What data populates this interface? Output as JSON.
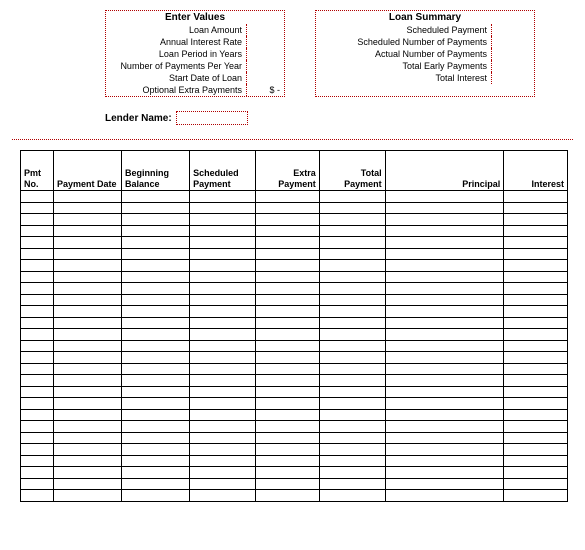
{
  "enter_values": {
    "title": "Enter Values",
    "rows": [
      {
        "label": "Loan Amount",
        "value": ""
      },
      {
        "label": "Annual Interest Rate",
        "value": ""
      },
      {
        "label": "Loan Period in Years",
        "value": ""
      },
      {
        "label": "Number of Payments Per Year",
        "value": ""
      },
      {
        "label": "Start Date of Loan",
        "value": ""
      },
      {
        "label": "Optional Extra Payments",
        "value": "$        -"
      }
    ]
  },
  "loan_summary": {
    "title": "Loan Summary",
    "rows": [
      {
        "label": "Scheduled Payment",
        "value": ""
      },
      {
        "label": "Scheduled Number of Payments",
        "value": ""
      },
      {
        "label": "Actual Number of Payments",
        "value": ""
      },
      {
        "label": "Total Early Payments",
        "value": ""
      },
      {
        "label": "Total Interest",
        "value": ""
      }
    ]
  },
  "lender": {
    "label": "Lender Name:",
    "value": ""
  },
  "schedule": {
    "columns": [
      {
        "label": "Pmt No.",
        "cls": "c-pmtno",
        "align": "l"
      },
      {
        "label": "Payment Date",
        "cls": "c-date",
        "align": "l"
      },
      {
        "label": "Beginning Balance",
        "cls": "c-beg",
        "align": "l"
      },
      {
        "label": "Scheduled Payment",
        "cls": "c-sched",
        "align": "l"
      },
      {
        "label": "Extra Payment",
        "cls": "c-extra",
        "align": "r"
      },
      {
        "label": "Total Payment",
        "cls": "c-total",
        "align": "r"
      },
      {
        "label": "Principal",
        "cls": "c-prin",
        "align": "r"
      },
      {
        "label": "Interest",
        "cls": "c-int",
        "align": "r"
      }
    ],
    "row_count": 27
  },
  "colors": {
    "dotted_border": "#b00000",
    "solid_border": "#000000",
    "background": "#ffffff"
  }
}
